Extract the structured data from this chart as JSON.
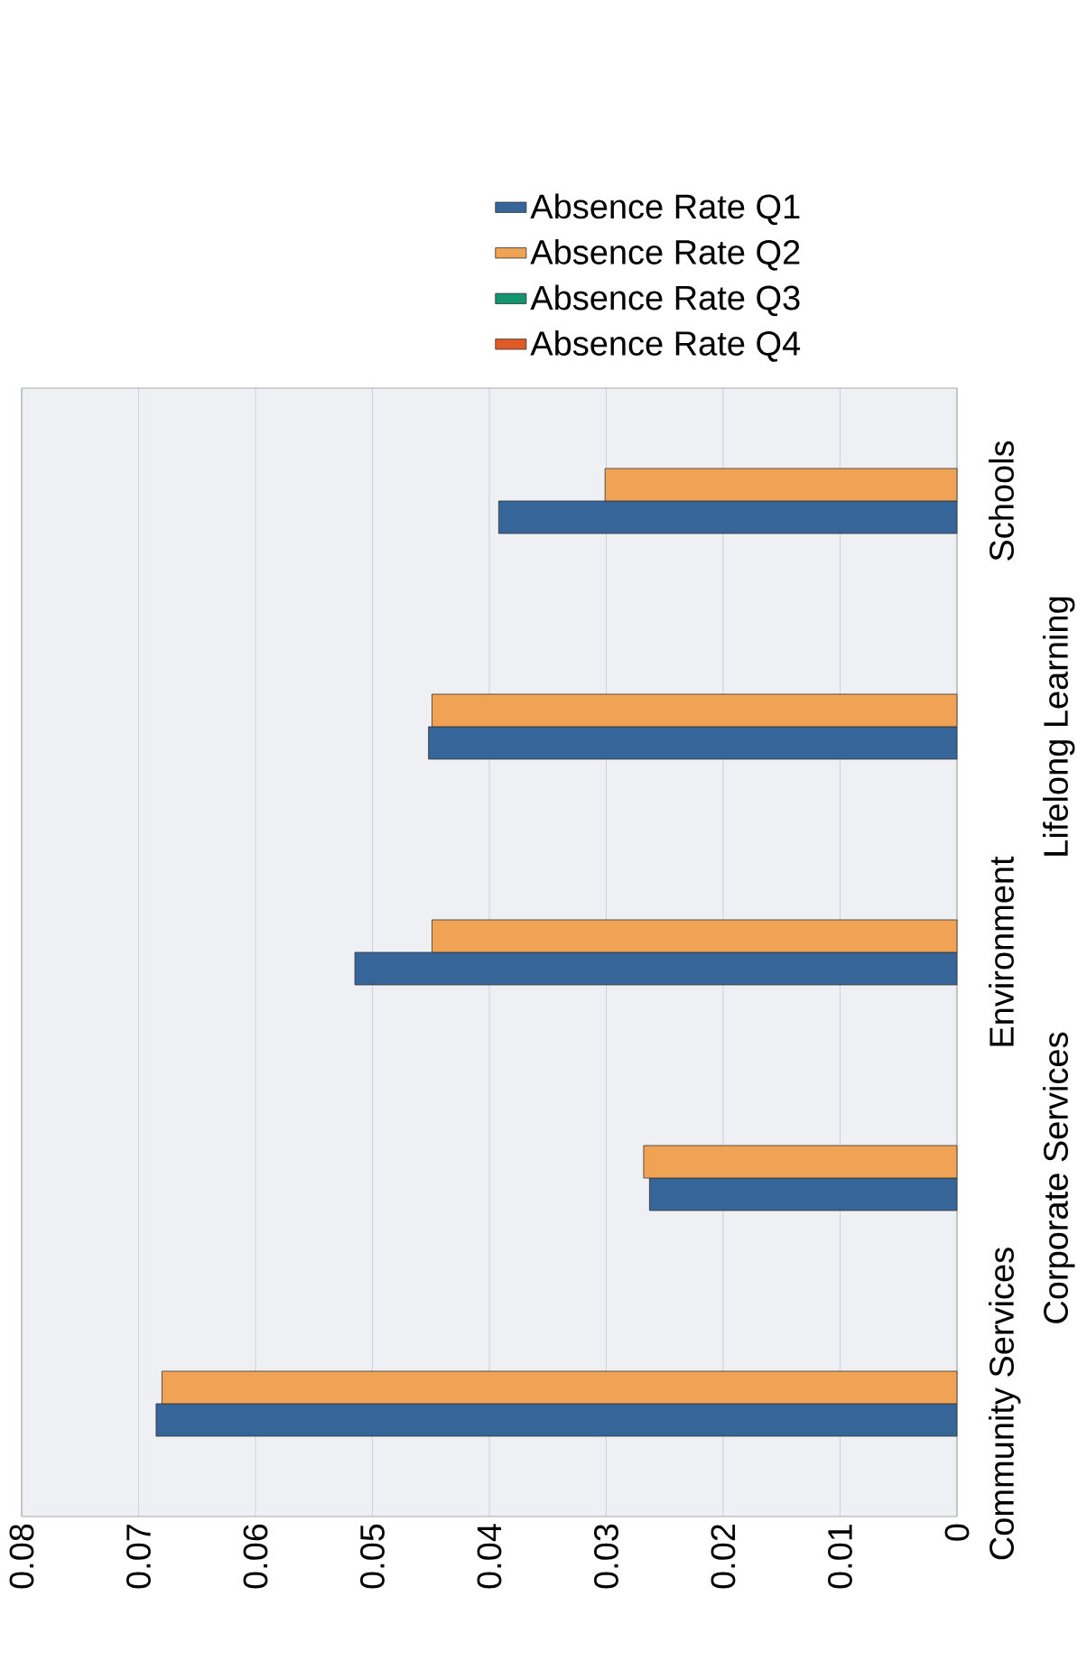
{
  "chart_data": {
    "type": "bar",
    "orientation": "horizontal",
    "categories": [
      "Schools",
      "Lifelong Learning",
      "Environment",
      "Corporate Services",
      "Community Services"
    ],
    "series": [
      {
        "name": "Absence Rate Q1",
        "color": "#366699",
        "values": [
          0.0392,
          0.0452,
          0.0515,
          0.0263,
          0.0685
        ]
      },
      {
        "name": "Absence Rate Q2",
        "color": "#f0a354",
        "values": [
          0.0301,
          0.0449,
          0.0449,
          0.0268,
          0.068
        ]
      },
      {
        "name": "Absence Rate Q3",
        "color": "#139670",
        "values": [
          null,
          null,
          null,
          null,
          null
        ]
      },
      {
        "name": "Absence Rate Q4",
        "color": "#e05a28",
        "values": [
          null,
          null,
          null,
          null,
          null
        ]
      }
    ],
    "xlim": [
      0.08,
      0
    ],
    "xticks": [
      0,
      0.01,
      0.02,
      0.03,
      0.04,
      0.05,
      0.06,
      0.07,
      0.08
    ],
    "grid": "x",
    "legend": "top"
  }
}
